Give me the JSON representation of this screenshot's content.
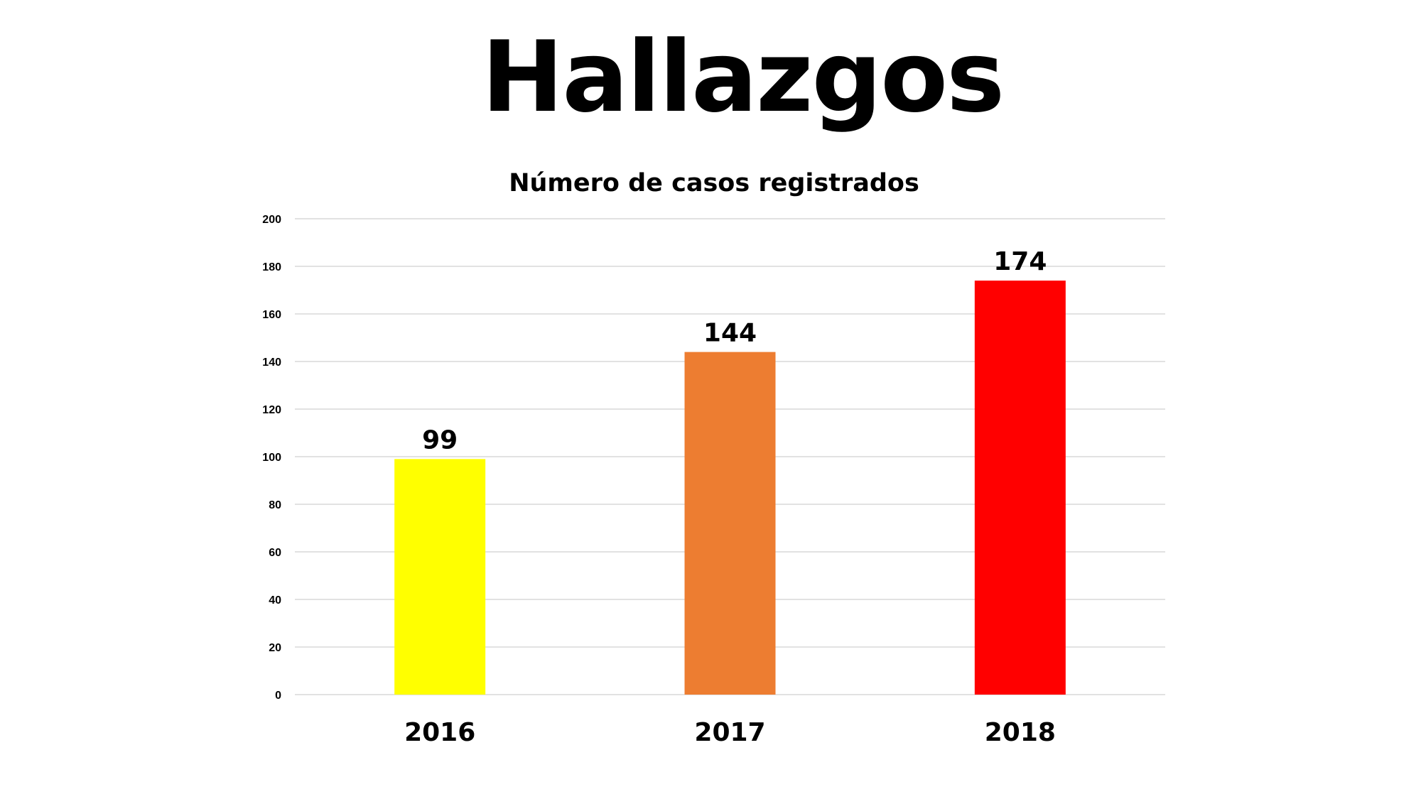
{
  "slide": {
    "title": "Hallazgos"
  },
  "chart_data": {
    "type": "bar",
    "title": "Número de casos registrados",
    "categories": [
      "2016",
      "2017",
      "2018"
    ],
    "values": [
      99,
      144,
      174
    ],
    "colors": [
      "#ffff00",
      "#ed7d31",
      "#ff0000"
    ],
    "ylim": [
      0,
      200
    ],
    "yticks": [
      0,
      20,
      40,
      60,
      80,
      100,
      120,
      140,
      160,
      180,
      200
    ],
    "grid": true,
    "xlabel": "",
    "ylabel": ""
  }
}
